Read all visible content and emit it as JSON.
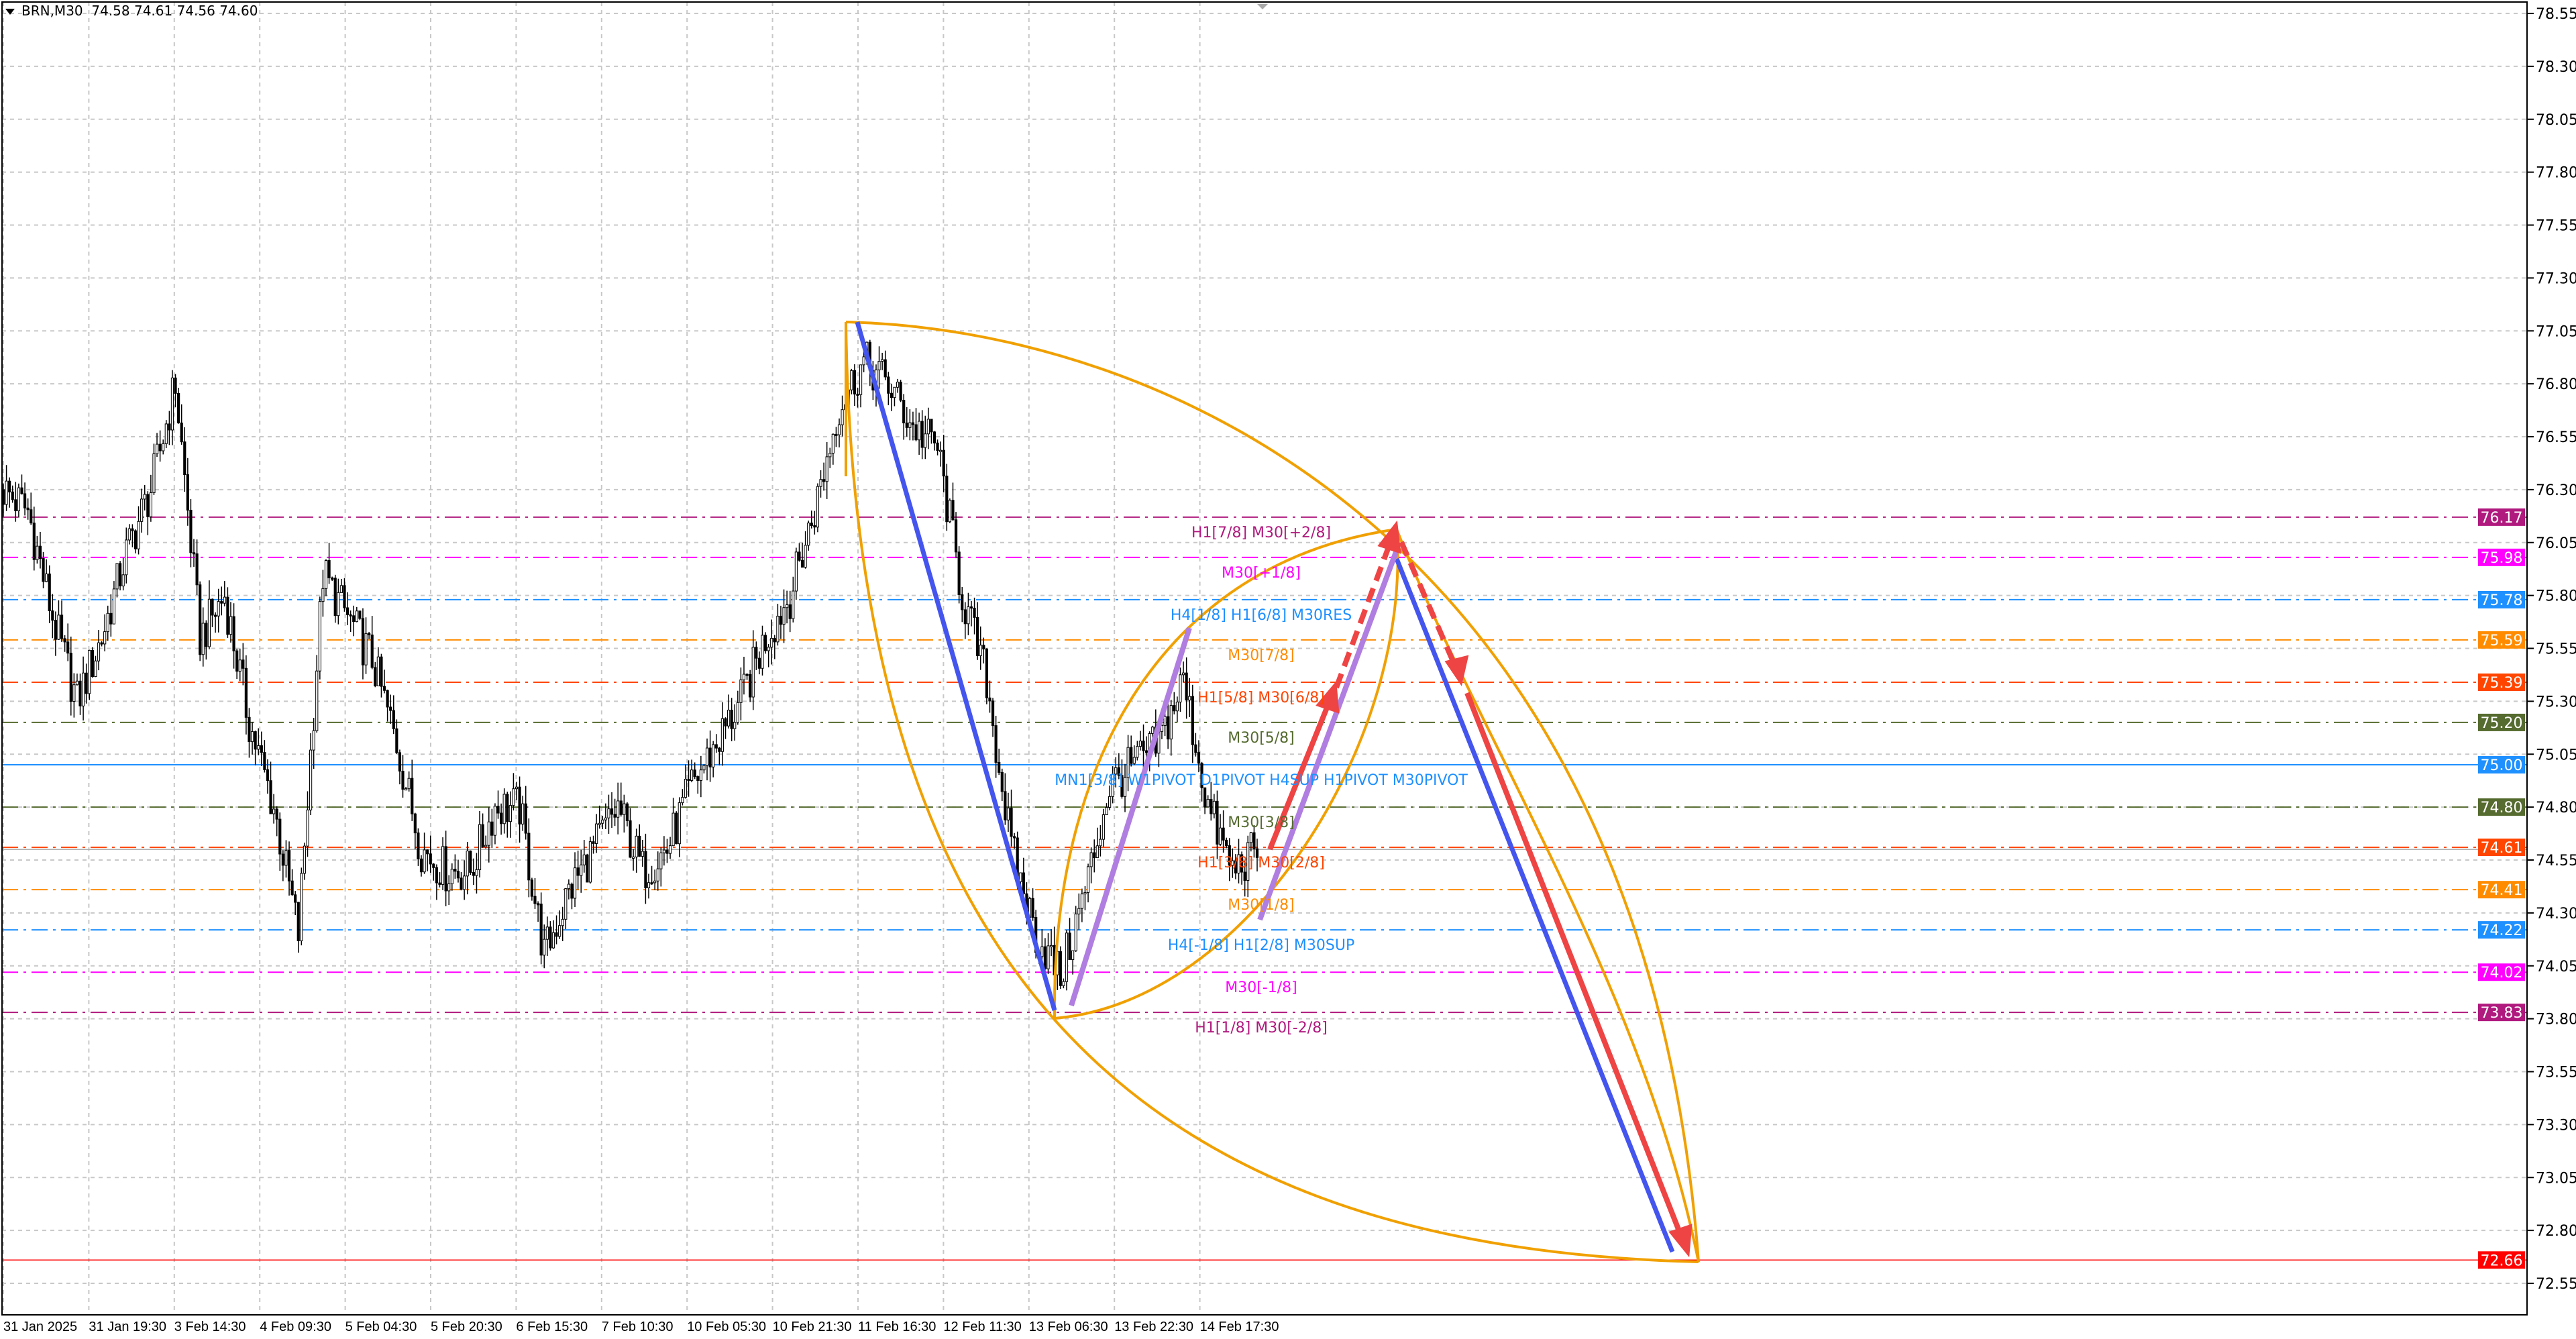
{
  "header": {
    "symbol": "BRN,M30",
    "ohlc": "74.58 74.61 74.56 74.60",
    "menu_icon": "triangle-down-icon"
  },
  "chart_data": {
    "type": "candlestick",
    "symbol": "BRN",
    "timeframe": "M30",
    "ylim": [
      72.55,
      78.55
    ],
    "y_ticks": [
      "78.55",
      "78.30",
      "78.05",
      "77.80",
      "77.55",
      "77.30",
      "77.05",
      "76.80",
      "76.55",
      "76.30",
      "76.05",
      "75.80",
      "75.55",
      "75.30",
      "75.05",
      "74.80",
      "74.55",
      "74.30",
      "74.05",
      "73.80",
      "73.55",
      "73.30",
      "73.05",
      "72.80",
      "72.55"
    ],
    "x_ticks": [
      "31 Jan 2025",
      "31 Jan 19:30",
      "3 Feb 14:30",
      "4 Feb 09:30",
      "5 Feb 04:30",
      "5 Feb 20:30",
      "6 Feb 15:30",
      "7 Feb 10:30",
      "10 Feb 05:30",
      "10 Feb 21:30",
      "11 Feb 16:30",
      "12 Feb 11:30",
      "13 Feb 06:30",
      "13 Feb 22:30",
      "14 Feb 17:30"
    ],
    "close_path_approx": [
      76.3,
      76.2,
      75.7,
      75.3,
      75.6,
      76.0,
      76.3,
      76.8,
      75.6,
      75.8,
      75.2,
      74.8,
      74.2,
      75.9,
      75.7,
      75.5,
      75.1,
      74.6,
      74.5,
      74.5,
      74.8,
      74.8,
      74.1,
      74.4,
      74.6,
      74.8,
      74.5,
      74.6,
      74.9,
      75.1,
      75.3,
      75.6,
      75.8,
      76.2,
      76.7,
      76.9,
      76.8,
      76.6,
      76.5,
      75.8,
      75.4,
      74.6,
      74.2,
      74.0,
      74.4,
      74.9,
      75.0,
      75.1,
      75.4,
      74.8,
      74.5,
      74.6
    ],
    "grid": true,
    "levels": [
      {
        "price": "76.17",
        "label": "H1[7/8] M30[+2/8]",
        "color": "#b0197e"
      },
      {
        "price": "75.98",
        "label": "M30[+1/8]",
        "color": "#ff00ff"
      },
      {
        "price": "75.78",
        "label": "H4[1/8] H1[6/8] M30RES",
        "color": "#1e90ff"
      },
      {
        "price": "75.59",
        "label": "M30[7/8]",
        "color": "#ff8c00"
      },
      {
        "price": "75.39",
        "label": "H1[5/8] M30[6/8]",
        "color": "#ff4500"
      },
      {
        "price": "75.20",
        "label": "M30[5/8]",
        "color": "#556b2f"
      },
      {
        "price": "75.00",
        "label": "MN1[3/8] W1PIVOT D1PIVOT H4SUP H1PIVOT M30PIVOT",
        "color": "#1e90ff"
      },
      {
        "price": "74.80",
        "label": "M30[3/8]",
        "color": "#556b2f"
      },
      {
        "price": "74.61",
        "label": "H1[3/8] M30[2/8]",
        "color": "#ff4500"
      },
      {
        "price": "74.41",
        "label": "M30[1/8]",
        "color": "#ff8c00"
      },
      {
        "price": "74.22",
        "label": "H4[-1/8] H1[2/8] M30SUP",
        "color": "#1e90ff"
      },
      {
        "price": "74.02",
        "label": "M30[-1/8]",
        "color": "#ff00ff"
      },
      {
        "price": "73.83",
        "label": "H1[1/8] M30[-2/8]",
        "color": "#b0197e"
      }
    ],
    "target_level": {
      "price": "72.66",
      "color": "#ff0000"
    },
    "drawing_colors": {
      "down_wave": "#4455ee",
      "up_wave": "#b07ee0",
      "arrows": "#ee4444",
      "arcs": "#f0a000"
    }
  }
}
